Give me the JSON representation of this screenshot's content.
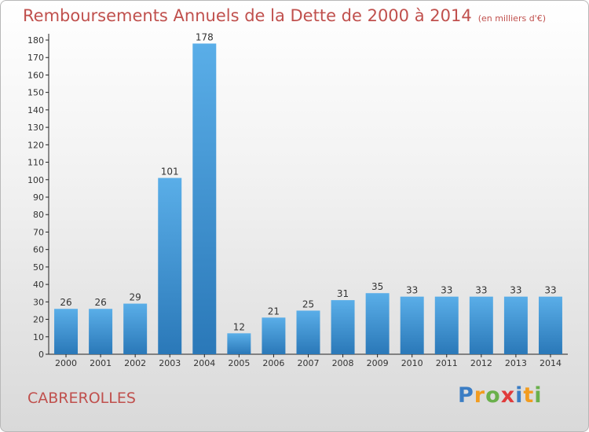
{
  "title": "Remboursements Annuels de la Dette de 2000 à 2014",
  "subtitle": "(en milliers d'€)",
  "location": "CABREROLLES",
  "logo": {
    "text": "Proxiti",
    "letters": [
      {
        "ch": "P",
        "color": "#3b7dc4"
      },
      {
        "ch": "r",
        "color": "#f29c1f"
      },
      {
        "ch": "o",
        "color": "#6ab04c"
      },
      {
        "ch": "x",
        "color": "#e03b3b"
      },
      {
        "ch": "i",
        "color": "#3b7dc4"
      },
      {
        "ch": "t",
        "color": "#f29c1f"
      },
      {
        "ch": "i",
        "color": "#6ab04c"
      }
    ]
  },
  "colors": {
    "title": "#c0504d",
    "bar_light": "#5aaee8",
    "bar_dark": "#2a78b8"
  },
  "chart_data": {
    "type": "bar",
    "title": "Remboursements Annuels de la Dette de 2000 à 2014",
    "xlabel": "",
    "ylabel": "",
    "ylim": [
      0,
      180
    ],
    "yticks": [
      0,
      10,
      20,
      30,
      40,
      50,
      60,
      70,
      80,
      90,
      100,
      110,
      120,
      130,
      140,
      150,
      160,
      170,
      180
    ],
    "grid": false,
    "categories": [
      "2000",
      "2001",
      "2002",
      "2003",
      "2004",
      "2005",
      "2006",
      "2007",
      "2008",
      "2009",
      "2010",
      "2011",
      "2012",
      "2013",
      "2014"
    ],
    "values": [
      26,
      26,
      29,
      101,
      178,
      12,
      21,
      25,
      31,
      35,
      33,
      33,
      33,
      33,
      33
    ]
  }
}
